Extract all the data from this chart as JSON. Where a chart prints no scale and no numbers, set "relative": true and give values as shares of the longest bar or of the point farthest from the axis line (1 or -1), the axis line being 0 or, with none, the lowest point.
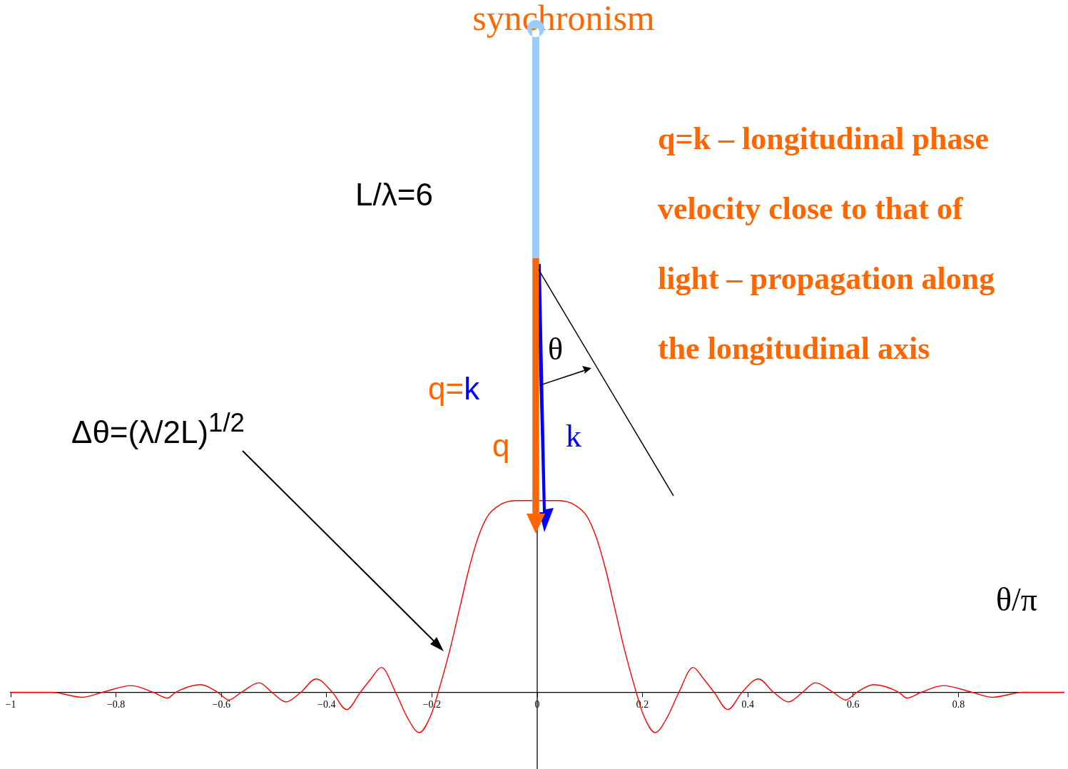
{
  "chart_data": {
    "type": "line",
    "title": "synchronism",
    "xlabel": "θ/π",
    "relative": true,
    "marker": "none",
    "grid": false,
    "legend": false,
    "x": [
      -1,
      -0.922,
      -0.864,
      -0.826,
      -0.771,
      -0.729,
      -0.702,
      -0.687,
      -0.639,
      -0.607,
      -0.586,
      -0.562,
      -0.528,
      -0.504,
      -0.477,
      -0.449,
      -0.42,
      -0.389,
      -0.362,
      -0.336,
      -0.316,
      -0.296,
      -0.269,
      -0.247,
      -0.224,
      -0.202,
      -0.188,
      -0.166,
      -0.148,
      -0.13,
      -0.112,
      -0.094,
      -0.072,
      -0.041,
      0.041,
      0.072,
      0.094,
      0.112,
      0.13,
      0.148,
      0.166,
      0.188,
      0.202,
      0.224,
      0.247,
      0.269,
      0.296,
      0.316,
      0.336,
      0.362,
      0.389,
      0.42,
      0.449,
      0.477,
      0.504,
      0.528,
      0.562,
      0.586,
      0.607,
      0.639,
      0.687,
      0.702,
      0.729,
      0.771,
      0.826,
      0.864,
      0.922,
      1
    ],
    "series": [
      {
        "color": "#ff0000",
        "values": [
          0,
          0,
          -0.026,
          0,
          0.035,
          0,
          -0.03,
          0,
          0.04,
          0,
          -0.04,
          0,
          0.05,
          0,
          -0.05,
          0,
          0.07,
          0,
          -0.09,
          0,
          0.07,
          0.13,
          0,
          -0.13,
          -0.21,
          -0.12,
          0,
          0.22,
          0.43,
          0.64,
          0.81,
          0.92,
          0.976,
          1,
          1,
          0.976,
          0.92,
          0.81,
          0.64,
          0.43,
          0.22,
          0,
          -0.12,
          -0.21,
          -0.13,
          0,
          0.13,
          0.07,
          0,
          -0.09,
          0,
          0.07,
          0,
          -0.05,
          0,
          0.05,
          0,
          -0.04,
          0,
          0.04,
          0,
          -0.03,
          0,
          0.035,
          0,
          -0.026,
          0,
          0
        ]
      }
    ],
    "xlim": [
      -1,
      1
    ],
    "xticks": [
      {
        "value": -1,
        "label": "−1"
      },
      {
        "value": -0.8,
        "label": "−0.8"
      },
      {
        "value": -0.6,
        "label": "−0.6"
      },
      {
        "value": -0.4,
        "label": "−0.4"
      },
      {
        "value": -0.2,
        "label": "−0.2"
      },
      0,
      0.2,
      0.4,
      0.6,
      0.8
    ],
    "ref_lines": [
      {
        "axis": "x",
        "value": 0,
        "color": "#000000"
      }
    ],
    "annotations": [
      "L/λ=6",
      "q=k – longitudinal phase velocity close to that of light – propagation along the longitudinal axis",
      "θ",
      "q=k",
      "q",
      "k",
      "Δθ=(λ/2L)$^{1/2}$"
    ]
  }
}
